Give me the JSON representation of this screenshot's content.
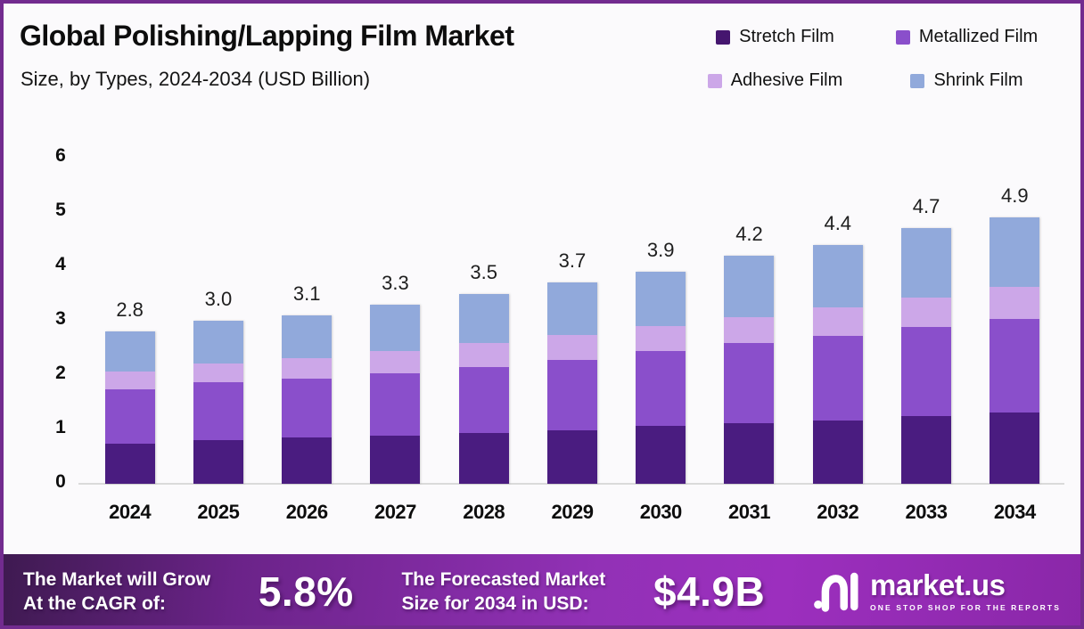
{
  "header": {
    "title": "Global Polishing/Lapping Film Market",
    "subtitle": "Size, by Types, 2024-2034 (USD Billion)"
  },
  "legend": {
    "items": [
      {
        "label": "Stretch Film",
        "color": "#45166f"
      },
      {
        "label": "Metallized Film",
        "color": "#8a4fcb"
      },
      {
        "label": "Adhesive Film",
        "color": "#cca7e8"
      },
      {
        "label": "Shrink Film",
        "color": "#91a9db"
      }
    ]
  },
  "chart_data": {
    "type": "bar",
    "stacked": true,
    "title": "Global Polishing/Lapping Film Market Size, by Types, 2024-2034 (USD Billion)",
    "units": "USD Billion",
    "categories": [
      "2024",
      "2025",
      "2026",
      "2027",
      "2028",
      "2029",
      "2030",
      "2031",
      "2032",
      "2033",
      "2034"
    ],
    "series": [
      {
        "name": "Stretch Film",
        "color": "#4a1c80",
        "values": [
          0.74,
          0.8,
          0.85,
          0.88,
          0.93,
          0.99,
          1.06,
          1.12,
          1.17,
          1.25,
          1.32
        ]
      },
      {
        "name": "Metallized Film",
        "color": "#8a4fcb",
        "values": [
          1.0,
          1.07,
          1.08,
          1.16,
          1.22,
          1.29,
          1.38,
          1.47,
          1.55,
          1.63,
          1.71
        ]
      },
      {
        "name": "Adhesive Film",
        "color": "#cca7e8",
        "values": [
          0.33,
          0.35,
          0.38,
          0.41,
          0.44,
          0.46,
          0.46,
          0.47,
          0.52,
          0.54,
          0.6
        ]
      },
      {
        "name": "Shrink Film",
        "color": "#91a9db",
        "values": [
          0.73,
          0.78,
          0.79,
          0.85,
          0.91,
          0.96,
          1.0,
          1.14,
          1.16,
          1.28,
          1.27
        ]
      }
    ],
    "totals_display": [
      "2.8",
      "3.0",
      "3.1",
      "3.3",
      "3.5",
      "3.7",
      "3.9",
      "4.2",
      "4.4",
      "4.7",
      "4.9"
    ],
    "yticks": [
      "0",
      "1",
      "2",
      "3",
      "4",
      "5",
      "6"
    ],
    "ylim": [
      0,
      6
    ],
    "grid": false,
    "legend_position": "top-right"
  },
  "footer": {
    "cagr": {
      "line1": "The Market will Grow",
      "line2": "At the CAGR of:",
      "value": "5.8%"
    },
    "forecast": {
      "line1": "The Forecasted Market",
      "line2": "Size for 2034 in USD:",
      "value": "$4.9B"
    },
    "brand": {
      "name": "market.us",
      "tagline": "ONE STOP SHOP FOR THE REPORTS"
    }
  },
  "colors": {
    "border": "#722b8f",
    "background": "#fbfafc",
    "axis_line": "#dadada",
    "banner_gradient": [
      "#3e1a50",
      "#9231b6",
      "#8a27a8"
    ]
  }
}
